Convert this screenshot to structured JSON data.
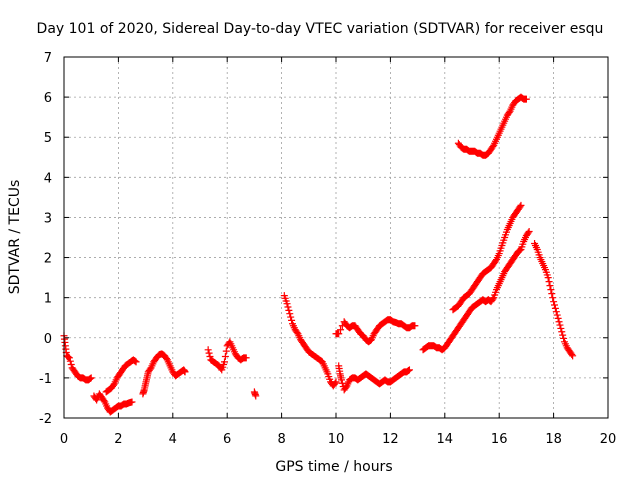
{
  "chart_data": {
    "type": "scatter",
    "title": "Day 101 of 2020, Sidereal Day-to-day VTEC variation (SDTVAR) for receiver esqu",
    "xlabel": "GPS time / hours",
    "ylabel": "SDTVAR / TECUs",
    "xlim": [
      0,
      20
    ],
    "ylim": [
      -2,
      7
    ],
    "xticks": [
      "0",
      "2",
      "4",
      "6",
      "8",
      "10",
      "12",
      "14",
      "16",
      "18",
      "20"
    ],
    "yticks": [
      "-2",
      "-1",
      "0",
      "1",
      "2",
      "3",
      "4",
      "5",
      "6",
      "7"
    ],
    "grid": true,
    "marker": "+",
    "color": "#ff0000",
    "series": [
      {
        "name": "SDTVAR",
        "segments": [
          [
            [
              0.0,
              0.05
            ],
            [
              0.05,
              -0.2
            ],
            [
              0.1,
              -0.45
            ],
            [
              0.2,
              -0.5
            ],
            [
              0.3,
              -0.75
            ],
            [
              0.4,
              -0.85
            ],
            [
              0.5,
              -0.95
            ],
            [
              0.6,
              -1.0
            ],
            [
              0.7,
              -1.0
            ],
            [
              0.8,
              -1.05
            ],
            [
              0.9,
              -1.05
            ],
            [
              1.0,
              -1.0
            ]
          ],
          [
            [
              1.1,
              -1.45
            ],
            [
              1.2,
              -1.55
            ],
            [
              1.3,
              -1.4
            ],
            [
              1.4,
              -1.5
            ],
            [
              1.5,
              -1.6
            ],
            [
              1.6,
              -1.75
            ],
            [
              1.7,
              -1.85
            ],
            [
              1.8,
              -1.8
            ],
            [
              1.9,
              -1.75
            ],
            [
              2.0,
              -1.7
            ],
            [
              2.1,
              -1.7
            ],
            [
              2.2,
              -1.65
            ],
            [
              2.3,
              -1.65
            ],
            [
              2.4,
              -1.62
            ],
            [
              2.5,
              -1.6
            ]
          ],
          [
            [
              1.55,
              -1.35
            ],
            [
              1.65,
              -1.3
            ],
            [
              1.75,
              -1.25
            ],
            [
              1.85,
              -1.15
            ],
            [
              1.95,
              -1.0
            ],
            [
              2.05,
              -0.9
            ],
            [
              2.15,
              -0.8
            ],
            [
              2.25,
              -0.7
            ],
            [
              2.35,
              -0.65
            ],
            [
              2.45,
              -0.6
            ],
            [
              2.55,
              -0.55
            ],
            [
              2.65,
              -0.6
            ]
          ],
          [
            [
              2.9,
              -1.4
            ],
            [
              2.95,
              -1.3
            ],
            [
              3.0,
              -1.15
            ],
            [
              3.05,
              -1.0
            ],
            [
              3.1,
              -0.85
            ],
            [
              3.2,
              -0.75
            ],
            [
              3.3,
              -0.6
            ],
            [
              3.4,
              -0.5
            ],
            [
              3.5,
              -0.42
            ],
            [
              3.6,
              -0.4
            ],
            [
              3.7,
              -0.45
            ],
            [
              3.8,
              -0.55
            ],
            [
              3.9,
              -0.7
            ],
            [
              4.0,
              -0.85
            ],
            [
              4.1,
              -0.95
            ],
            [
              4.2,
              -0.9
            ],
            [
              4.3,
              -0.85
            ],
            [
              4.4,
              -0.8
            ],
            [
              4.45,
              -0.85
            ]
          ],
          [
            [
              5.3,
              -0.3
            ],
            [
              5.4,
              -0.55
            ],
            [
              5.5,
              -0.6
            ],
            [
              5.6,
              -0.65
            ],
            [
              5.7,
              -0.7
            ],
            [
              5.8,
              -0.8
            ],
            [
              5.9,
              -0.6
            ],
            [
              6.0,
              -0.2
            ],
            [
              6.1,
              -0.1
            ],
            [
              6.2,
              -0.25
            ],
            [
              6.3,
              -0.4
            ],
            [
              6.4,
              -0.5
            ],
            [
              6.5,
              -0.55
            ],
            [
              6.6,
              -0.5
            ],
            [
              6.7,
              -0.5
            ]
          ],
          [
            [
              7.0,
              -1.35
            ],
            [
              7.05,
              -1.45
            ]
          ],
          [
            [
              8.1,
              1.05
            ],
            [
              8.2,
              0.85
            ],
            [
              8.3,
              0.6
            ],
            [
              8.4,
              0.35
            ],
            [
              8.5,
              0.2
            ],
            [
              8.6,
              0.1
            ],
            [
              8.7,
              -0.05
            ],
            [
              8.8,
              -0.15
            ],
            [
              8.9,
              -0.25
            ],
            [
              9.0,
              -0.35
            ],
            [
              9.1,
              -0.4
            ],
            [
              9.2,
              -0.45
            ],
            [
              9.3,
              -0.5
            ],
            [
              9.4,
              -0.55
            ],
            [
              9.5,
              -0.6
            ],
            [
              9.6,
              -0.75
            ],
            [
              9.7,
              -0.9
            ],
            [
              9.8,
              -1.1
            ],
            [
              9.9,
              -1.2
            ],
            [
              10.0,
              -1.1
            ]
          ],
          [
            [
              10.1,
              -0.7
            ],
            [
              10.15,
              -0.9
            ],
            [
              10.2,
              -1.05
            ],
            [
              10.3,
              -1.3
            ],
            [
              10.4,
              -1.2
            ],
            [
              10.5,
              -1.05
            ],
            [
              10.6,
              -1.0
            ],
            [
              10.7,
              -1.0
            ],
            [
              10.8,
              -1.05
            ],
            [
              10.9,
              -1.0
            ],
            [
              11.0,
              -0.95
            ],
            [
              11.1,
              -0.9
            ],
            [
              11.2,
              -0.95
            ],
            [
              11.3,
              -1.0
            ],
            [
              11.4,
              -1.05
            ],
            [
              11.5,
              -1.1
            ],
            [
              11.6,
              -1.15
            ],
            [
              11.7,
              -1.1
            ],
            [
              11.8,
              -1.05
            ],
            [
              11.9,
              -1.1
            ],
            [
              12.0,
              -1.1
            ],
            [
              12.1,
              -1.05
            ],
            [
              12.2,
              -1.0
            ],
            [
              12.3,
              -0.95
            ],
            [
              12.4,
              -0.9
            ],
            [
              12.5,
              -0.85
            ],
            [
              12.6,
              -0.85
            ],
            [
              12.7,
              -0.8
            ]
          ],
          [
            [
              10.0,
              0.1
            ],
            [
              10.1,
              0.1
            ],
            [
              10.3,
              0.4
            ],
            [
              10.4,
              0.3
            ],
            [
              10.5,
              0.25
            ],
            [
              10.6,
              0.3
            ],
            [
              10.7,
              0.3
            ],
            [
              10.8,
              0.2
            ],
            [
              10.9,
              0.1
            ],
            [
              11.0,
              0.05
            ],
            [
              11.1,
              -0.05
            ],
            [
              11.2,
              -0.1
            ],
            [
              11.3,
              -0.05
            ],
            [
              11.4,
              0.1
            ],
            [
              11.5,
              0.2
            ],
            [
              11.6,
              0.3
            ],
            [
              11.7,
              0.35
            ],
            [
              11.8,
              0.4
            ],
            [
              11.9,
              0.45
            ],
            [
              12.0,
              0.45
            ],
            [
              12.1,
              0.4
            ],
            [
              12.2,
              0.38
            ],
            [
              12.3,
              0.35
            ],
            [
              12.4,
              0.35
            ],
            [
              12.5,
              0.3
            ],
            [
              12.6,
              0.25
            ],
            [
              12.7,
              0.25
            ],
            [
              12.8,
              0.3
            ],
            [
              12.9,
              0.3
            ]
          ],
          [
            [
              13.2,
              -0.3
            ],
            [
              13.3,
              -0.25
            ],
            [
              13.4,
              -0.2
            ],
            [
              13.5,
              -0.2
            ],
            [
              13.6,
              -0.2
            ],
            [
              13.7,
              -0.25
            ],
            [
              13.8,
              -0.25
            ],
            [
              13.9,
              -0.3
            ],
            [
              14.0,
              -0.25
            ],
            [
              14.1,
              -0.15
            ],
            [
              14.2,
              -0.05
            ],
            [
              14.3,
              0.05
            ],
            [
              14.4,
              0.15
            ],
            [
              14.5,
              0.25
            ],
            [
              14.6,
              0.35
            ],
            [
              14.7,
              0.45
            ],
            [
              14.8,
              0.55
            ],
            [
              14.9,
              0.65
            ],
            [
              15.0,
              0.75
            ],
            [
              15.1,
              0.8
            ],
            [
              15.2,
              0.85
            ],
            [
              15.3,
              0.9
            ],
            [
              15.4,
              0.95
            ],
            [
              15.5,
              0.9
            ],
            [
              15.6,
              0.95
            ],
            [
              15.7,
              0.9
            ],
            [
              15.8,
              1.0
            ],
            [
              15.9,
              1.2
            ],
            [
              16.0,
              1.35
            ],
            [
              16.1,
              1.5
            ],
            [
              16.2,
              1.65
            ],
            [
              16.3,
              1.75
            ],
            [
              16.4,
              1.85
            ],
            [
              16.5,
              1.95
            ],
            [
              16.6,
              2.05
            ],
            [
              16.7,
              2.15
            ],
            [
              16.8,
              2.2
            ],
            [
              16.9,
              2.4
            ],
            [
              17.0,
              2.55
            ],
            [
              17.1,
              2.65
            ]
          ],
          [
            [
              14.3,
              0.7
            ],
            [
              14.4,
              0.75
            ],
            [
              14.5,
              0.8
            ],
            [
              14.6,
              0.9
            ],
            [
              14.7,
              1.0
            ],
            [
              14.8,
              1.05
            ],
            [
              14.9,
              1.1
            ],
            [
              15.0,
              1.2
            ],
            [
              15.1,
              1.3
            ],
            [
              15.2,
              1.4
            ],
            [
              15.3,
              1.5
            ],
            [
              15.4,
              1.6
            ],
            [
              15.5,
              1.65
            ],
            [
              15.6,
              1.7
            ],
            [
              15.7,
              1.75
            ],
            [
              15.8,
              1.85
            ],
            [
              15.9,
              1.95
            ],
            [
              16.0,
              2.1
            ],
            [
              16.1,
              2.3
            ],
            [
              16.2,
              2.5
            ],
            [
              16.3,
              2.7
            ],
            [
              16.4,
              2.85
            ],
            [
              16.5,
              3.0
            ],
            [
              16.6,
              3.1
            ],
            [
              16.7,
              3.2
            ],
            [
              16.8,
              3.3
            ]
          ],
          [
            [
              14.5,
              4.85
            ],
            [
              14.6,
              4.75
            ],
            [
              14.7,
              4.7
            ],
            [
              14.8,
              4.7
            ],
            [
              14.9,
              4.65
            ],
            [
              15.0,
              4.65
            ],
            [
              15.1,
              4.65
            ],
            [
              15.2,
              4.6
            ],
            [
              15.3,
              4.6
            ],
            [
              15.4,
              4.55
            ],
            [
              15.5,
              4.55
            ],
            [
              15.6,
              4.6
            ],
            [
              15.7,
              4.7
            ],
            [
              15.8,
              4.8
            ],
            [
              15.9,
              4.95
            ],
            [
              16.0,
              5.1
            ],
            [
              16.1,
              5.25
            ],
            [
              16.2,
              5.4
            ],
            [
              16.3,
              5.55
            ],
            [
              16.4,
              5.65
            ],
            [
              16.5,
              5.8
            ],
            [
              16.6,
              5.9
            ],
            [
              16.7,
              5.95
            ],
            [
              16.8,
              6.0
            ],
            [
              16.9,
              5.95
            ],
            [
              17.0,
              5.95
            ]
          ],
          [
            [
              17.3,
              2.35
            ],
            [
              17.4,
              2.2
            ],
            [
              17.5,
              2.0
            ],
            [
              17.6,
              1.85
            ],
            [
              17.7,
              1.7
            ],
            [
              17.8,
              1.5
            ],
            [
              17.9,
              1.2
            ],
            [
              18.0,
              0.9
            ],
            [
              18.1,
              0.65
            ],
            [
              18.2,
              0.4
            ],
            [
              18.3,
              0.15
            ],
            [
              18.4,
              -0.1
            ],
            [
              18.5,
              -0.25
            ],
            [
              18.6,
              -0.35
            ],
            [
              18.7,
              -0.45
            ]
          ]
        ]
      }
    ]
  }
}
